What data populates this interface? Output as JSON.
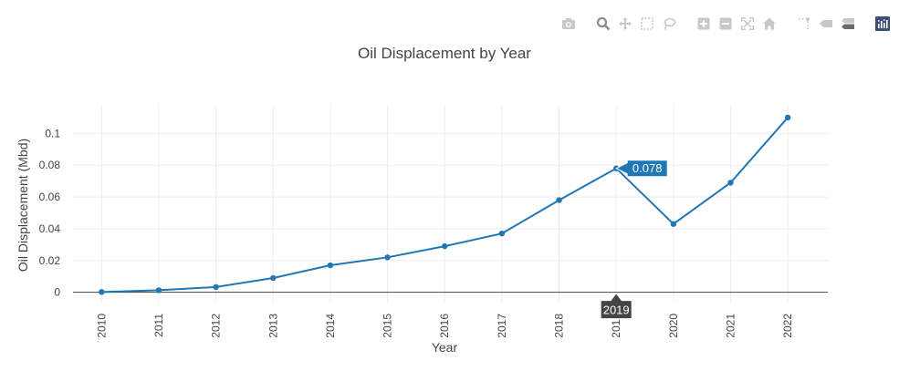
{
  "modebar": {
    "buttons": [
      {
        "name": "camera-icon",
        "group": 0
      },
      {
        "name": "zoom-icon",
        "group": 1,
        "active": true
      },
      {
        "name": "pan-icon",
        "group": 1
      },
      {
        "name": "box-select-icon",
        "group": 1
      },
      {
        "name": "lasso-select-icon",
        "group": 1
      },
      {
        "name": "zoom-in-icon",
        "group": 2
      },
      {
        "name": "zoom-out-icon",
        "group": 2
      },
      {
        "name": "autoscale-icon",
        "group": 2
      },
      {
        "name": "reset-axes-icon",
        "group": 2
      },
      {
        "name": "spike-lines-icon",
        "group": 3
      },
      {
        "name": "hover-closest-icon",
        "group": 3
      },
      {
        "name": "hover-compare-icon",
        "group": 3
      },
      {
        "name": "plotly-logo-icon",
        "group": 4
      }
    ],
    "icon_color": "#c8c8c8",
    "active_color": "#8c8c8c",
    "logo_color": "#3f4f75"
  },
  "chart_data": {
    "type": "line",
    "title": "Oil Displacement by Year",
    "xlabel": "Year",
    "ylabel": "Oil Displacement (Mbd)",
    "categories": [
      "2010",
      "2011",
      "2012",
      "2013",
      "2014",
      "2015",
      "2016",
      "2017",
      "2018",
      "2019",
      "2020",
      "2021",
      "2022"
    ],
    "series": [
      {
        "values": [
          0.0002,
          0.0013,
          0.0033,
          0.009,
          0.017,
          0.022,
          0.029,
          0.037,
          0.058,
          0.078,
          0.043,
          0.069,
          0.11
        ]
      }
    ],
    "ylim": [
      -0.0065,
      0.118
    ],
    "yticks": [
      0,
      0.02,
      0.04,
      0.06,
      0.08,
      0.1
    ],
    "ytick_labels": [
      "0",
      "0.02",
      "0.04",
      "0.06",
      "0.08",
      "0.1"
    ],
    "grid": true,
    "line_color": "#1f77b4",
    "hover": {
      "x": "2019",
      "label": "0.078"
    }
  }
}
